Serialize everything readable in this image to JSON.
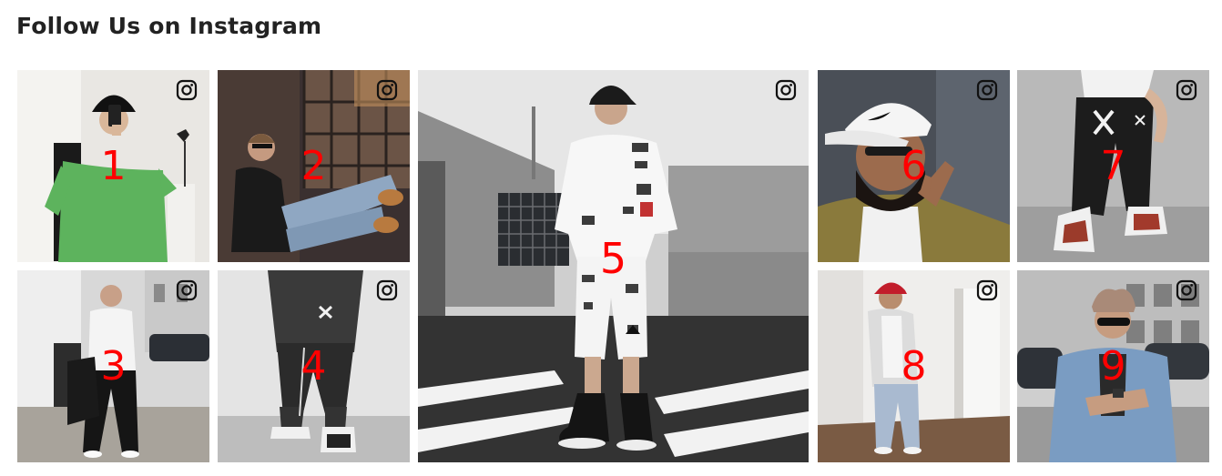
{
  "section": {
    "title": "Follow Us on Instagram"
  },
  "icons": {
    "overlay": "instagram-icon"
  },
  "tiles": [
    {
      "number": "1",
      "icon_color": "#111111"
    },
    {
      "number": "2",
      "icon_color": "#111111"
    },
    {
      "number": "3",
      "icon_color": "#111111"
    },
    {
      "number": "4",
      "icon_color": "#111111"
    },
    {
      "number": "5",
      "icon_color": "#111111"
    },
    {
      "number": "6",
      "icon_color": "#111111"
    },
    {
      "number": "7",
      "icon_color": "#111111"
    },
    {
      "number": "8",
      "icon_color": "#111111"
    },
    {
      "number": "9",
      "icon_color": "#111111"
    }
  ],
  "colors": {
    "number_label": "#ff0000",
    "title": "#222222"
  }
}
